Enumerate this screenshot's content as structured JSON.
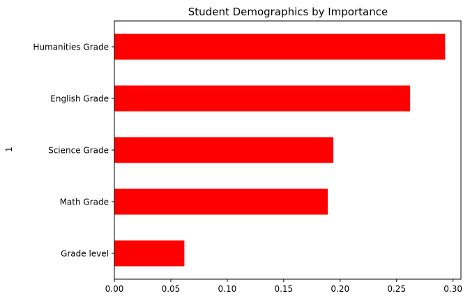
{
  "chart_data": {
    "type": "bar",
    "orientation": "horizontal",
    "title": "Student Demographics by Importance",
    "xlabel": "",
    "ylabel": "1",
    "categories": [
      "Grade level",
      "Math Grade",
      "Science Grade",
      "English Grade",
      "Humanities Grade"
    ],
    "values": [
      0.062,
      0.189,
      0.194,
      0.262,
      0.293
    ],
    "xlim": [
      0,
      0.307
    ],
    "xticks": [
      0.0,
      0.05,
      0.1,
      0.15,
      0.2,
      0.25,
      0.3
    ],
    "xtick_labels": [
      "0.00",
      "0.05",
      "0.10",
      "0.15",
      "0.20",
      "0.25",
      "0.30"
    ],
    "grid": false,
    "legend": "none",
    "bar_color": "#ff0000"
  }
}
